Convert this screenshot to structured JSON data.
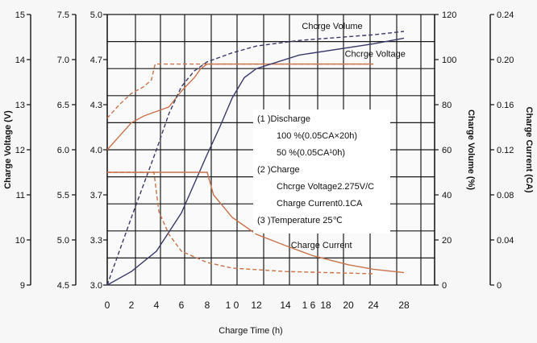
{
  "chart_data": {
    "type": "line",
    "xlabel": "Charge Time (h)",
    "x_ticks": [
      "0",
      "2",
      "4",
      "6",
      "8",
      "1 0",
      "12",
      "14",
      "1 6",
      "18",
      "20",
      "24",
      "28"
    ],
    "axes": [
      {
        "id": "voltage_12v",
        "label": "Charge Voltage (V)",
        "ticks": [
          "15",
          "14",
          "13",
          "12",
          "11",
          "10",
          "9"
        ],
        "ylim": [
          9,
          15
        ]
      },
      {
        "id": "voltage_6v",
        "label": "",
        "ticks": [
          "7.5",
          "7.0",
          "6.5",
          "6.0",
          "5.5",
          "5.0",
          "4.5"
        ],
        "ylim": [
          4.5,
          7.5
        ]
      },
      {
        "id": "voltage_4v",
        "label": "",
        "ticks": [
          "5.0",
          "4.7",
          "4.3",
          "4.0",
          "3.7",
          "3.3",
          "3.0"
        ],
        "ylim": [
          3.0,
          5.0
        ]
      },
      {
        "id": "volume",
        "label": "Charge Volume (%)",
        "ticks": [
          "120",
          "100",
          "80",
          "60",
          "40",
          "20",
          "0"
        ],
        "ylim": [
          0,
          120
        ]
      },
      {
        "id": "current",
        "label": "Charge Current (CA)",
        "ticks": [
          "0.24",
          "0.20",
          "0.16",
          "0.12",
          "0.08",
          "0.04",
          "0"
        ],
        "ylim": [
          0,
          0.24
        ]
      }
    ],
    "series": [
      {
        "name": "Chcrge Voltage",
        "color": "#c8734a",
        "dashed": true,
        "axis": "voltage_12v",
        "points": [
          [
            0,
            12.7
          ],
          [
            1,
            13.0
          ],
          [
            2,
            13.25
          ],
          [
            3,
            13.4
          ],
          [
            3.6,
            13.55
          ],
          [
            3.9,
            13.9
          ],
          [
            6,
            13.9
          ],
          [
            10,
            13.9
          ],
          [
            15,
            13.9
          ],
          [
            20,
            13.9
          ],
          [
            25,
            13.9
          ],
          [
            27,
            13.9
          ]
        ]
      },
      {
        "name": "",
        "color": "#c8734a",
        "dashed": false,
        "axis": "voltage_12v",
        "points": [
          [
            0,
            12.0
          ],
          [
            1,
            12.3
          ],
          [
            2,
            12.6
          ],
          [
            3,
            12.75
          ],
          [
            4,
            12.85
          ],
          [
            5,
            12.95
          ],
          [
            6,
            13.3
          ],
          [
            7,
            13.6
          ],
          [
            7.5,
            13.8
          ],
          [
            8,
            13.9
          ],
          [
            10,
            13.9
          ],
          [
            15,
            13.9
          ],
          [
            20,
            13.9
          ],
          [
            25,
            13.9
          ],
          [
            27,
            13.9
          ]
        ]
      },
      {
        "name": "Chcrge Volume",
        "color": "#3a3a6a",
        "dashed": true,
        "axis": "volume",
        "points": [
          [
            0,
            0
          ],
          [
            1,
            15
          ],
          [
            2,
            30
          ],
          [
            3,
            45
          ],
          [
            4,
            60
          ],
          [
            5,
            76
          ],
          [
            6,
            88
          ],
          [
            7,
            95
          ],
          [
            8,
            99
          ],
          [
            10,
            103
          ],
          [
            12,
            106
          ],
          [
            15,
            108.5
          ],
          [
            20,
            111
          ],
          [
            24,
            112.5
          ],
          [
            27,
            114
          ]
        ]
      },
      {
        "name": "",
        "color": "#3a3a6a",
        "dashed": false,
        "axis": "volume",
        "points": [
          [
            0,
            0
          ],
          [
            2,
            6
          ],
          [
            4,
            15
          ],
          [
            6,
            32
          ],
          [
            7,
            45
          ],
          [
            8,
            58
          ],
          [
            9,
            70
          ],
          [
            10,
            83
          ],
          [
            11,
            92
          ],
          [
            12,
            96
          ],
          [
            15,
            102
          ],
          [
            20,
            107
          ],
          [
            24,
            109.5
          ],
          [
            27,
            111
          ]
        ]
      },
      {
        "name": "Charge Current",
        "color": "#c8734a",
        "dashed": true,
        "axis": "current",
        "points": [
          [
            0,
            0.1
          ],
          [
            3.8,
            0.1
          ],
          [
            4.2,
            0.065
          ],
          [
            5,
            0.045
          ],
          [
            6,
            0.03
          ],
          [
            8,
            0.02
          ],
          [
            10,
            0.015
          ],
          [
            14,
            0.012
          ],
          [
            20,
            0.01
          ],
          [
            27,
            0.01
          ]
        ]
      },
      {
        "name": "",
        "color": "#c8734a",
        "dashed": false,
        "axis": "current",
        "points": [
          [
            0,
            0.1
          ],
          [
            8,
            0.1
          ],
          [
            8.5,
            0.08
          ],
          [
            10,
            0.06
          ],
          [
            12,
            0.045
          ],
          [
            14,
            0.035
          ],
          [
            16,
            0.026
          ],
          [
            18,
            0.018
          ],
          [
            20,
            0.014
          ],
          [
            24,
            0.011
          ],
          [
            27,
            0.01
          ]
        ]
      }
    ],
    "annotations": [
      {
        "id": "ann_vol",
        "text": "Chcrge Volume",
        "at": [
          15.2,
          113.5
        ],
        "axis": "volume"
      },
      {
        "id": "ann_volt",
        "text": "Chcrge Voltage",
        "at": [
          17.8,
          14.06
        ],
        "axis": "voltage_12v"
      },
      {
        "id": "ann_cur",
        "text": "Charge Current",
        "at": [
          14.4,
          0.033
        ],
        "axis": "current"
      }
    ],
    "grid": true,
    "notes": [
      "(1 )Discharge",
      "100 %(0.05CA×20h)",
      "50 %(0.05CA¹0h)",
      "(2 )Charge",
      "Chcrge Voltage2.275V/C",
      "Charge Current0.1CA",
      "(3 )Temperature 25℃"
    ]
  }
}
